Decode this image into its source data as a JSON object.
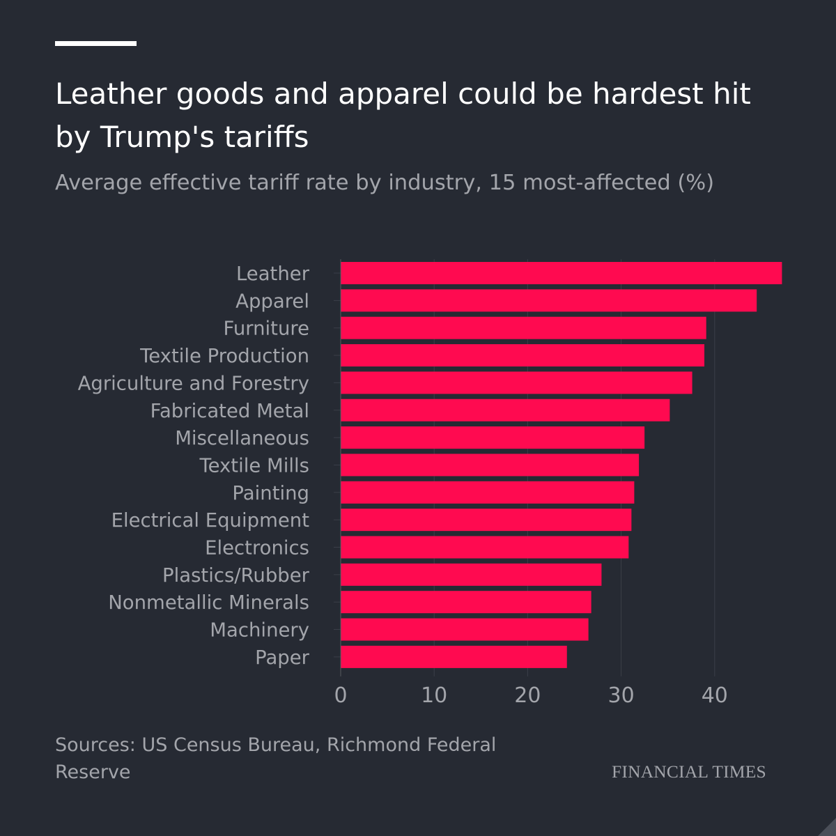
{
  "title": "Leather goods and apparel could be hardest hit by Trump's tariffs",
  "subtitle": "Average effective tariff rate by industry, 15 most-affected (%)",
  "source": "Sources: US Census Bureau, Richmond Federal Reserve",
  "brand": "FINANCIAL TIMES",
  "colors": {
    "background": "#262a33",
    "bar": "#ff0a50",
    "text": "#a3a5ab",
    "title": "#ffffff",
    "grid": "#3b3f49"
  },
  "chart_data": {
    "type": "bar",
    "orientation": "horizontal",
    "title": "Leather goods and apparel could be hardest hit by Trump's tariffs",
    "subtitle": "Average effective tariff rate by industry, 15 most-affected (%)",
    "categories": [
      "Leather",
      "Apparel",
      "Furniture",
      "Textile Production",
      "Agriculture and Forestry",
      "Fabricated Metal",
      "Miscellaneous",
      "Textile Mills",
      "Painting",
      "Electrical Equipment",
      "Electronics",
      "Plastics/Rubber",
      "Nonmetallic Minerals",
      "Machinery",
      "Paper"
    ],
    "values": [
      47.2,
      44.5,
      39.1,
      38.9,
      37.6,
      35.2,
      32.5,
      31.9,
      31.4,
      31.1,
      30.8,
      27.9,
      26.8,
      26.5,
      24.2
    ],
    "xlim": [
      0,
      50
    ],
    "xticks": [
      0,
      10,
      20,
      30,
      40
    ],
    "xlabel": "",
    "ylabel": "",
    "grid": true,
    "legend": "none"
  }
}
